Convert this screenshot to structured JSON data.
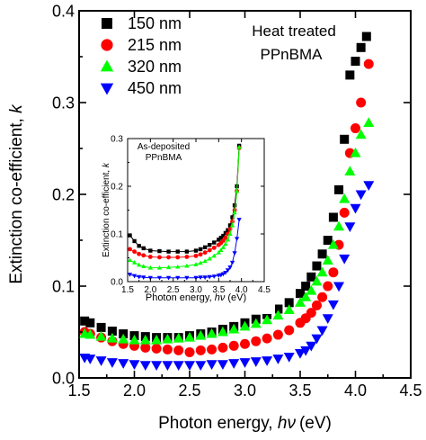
{
  "chart_data": [
    {
      "type": "scatter",
      "title": "",
      "xlabel_text": "Photon energy, ",
      "xlabel_symbol": "hν",
      "xlabel_unit": "(eV)",
      "ylabel_text": "Extinction co-efficient, ",
      "ylabel_symbol": "k",
      "xlim": [
        1.5,
        4.5
      ],
      "ylim": [
        0.0,
        0.4
      ],
      "xticks": [
        "1.5",
        "2.0",
        "2.5",
        "3.0",
        "3.5",
        "4.0",
        "4.5"
      ],
      "yticks": [
        "0.0",
        "0.1",
        "0.2",
        "0.3",
        "0.4"
      ],
      "annotation": [
        "Heat treated",
        "PPnBMA"
      ],
      "legend_position": "top-left",
      "series": [
        {
          "name": "150 nm",
          "marker": "square",
          "color": "#000000",
          "x": [
            1.55,
            1.6,
            1.7,
            1.8,
            1.9,
            2.0,
            2.1,
            2.2,
            2.3,
            2.4,
            2.5,
            2.6,
            2.7,
            2.8,
            2.9,
            3.0,
            3.1,
            3.2,
            3.3,
            3.4,
            3.5,
            3.55,
            3.6,
            3.65,
            3.7,
            3.75,
            3.8,
            3.85,
            3.9,
            3.95,
            4.0,
            4.05,
            4.1
          ],
          "y": [
            0.062,
            0.06,
            0.055,
            0.051,
            0.048,
            0.046,
            0.045,
            0.044,
            0.044,
            0.044,
            0.046,
            0.048,
            0.05,
            0.053,
            0.056,
            0.06,
            0.064,
            0.069,
            0.075,
            0.082,
            0.092,
            0.1,
            0.11,
            0.122,
            0.135,
            0.15,
            0.175,
            0.205,
            0.26,
            0.33,
            0.345,
            0.36,
            0.372
          ]
        },
        {
          "name": "215 nm",
          "marker": "circle",
          "color": "#ff0000",
          "x": [
            1.55,
            1.6,
            1.7,
            1.8,
            1.9,
            2.0,
            2.1,
            2.2,
            2.3,
            2.4,
            2.5,
            2.6,
            2.7,
            2.8,
            2.9,
            3.0,
            3.1,
            3.2,
            3.3,
            3.4,
            3.5,
            3.55,
            3.6,
            3.65,
            3.7,
            3.75,
            3.8,
            3.85,
            3.9,
            3.95,
            4.0,
            4.05,
            4.12
          ],
          "y": [
            0.05,
            0.048,
            0.044,
            0.04,
            0.037,
            0.035,
            0.033,
            0.032,
            0.031,
            0.03,
            0.028,
            0.03,
            0.031,
            0.033,
            0.035,
            0.037,
            0.04,
            0.043,
            0.047,
            0.052,
            0.06,
            0.065,
            0.071,
            0.079,
            0.088,
            0.1,
            0.115,
            0.145,
            0.18,
            0.245,
            0.272,
            0.3,
            0.342
          ]
        },
        {
          "name": "320 nm",
          "marker": "triangle-up",
          "color": "#00ff00",
          "x": [
            1.55,
            1.6,
            1.7,
            1.8,
            1.9,
            2.0,
            2.1,
            2.2,
            2.3,
            2.4,
            2.5,
            2.6,
            2.7,
            2.8,
            2.9,
            3.0,
            3.1,
            3.2,
            3.3,
            3.4,
            3.5,
            3.55,
            3.6,
            3.65,
            3.7,
            3.75,
            3.8,
            3.85,
            3.9,
            3.95,
            4.0,
            4.05,
            4.12
          ],
          "y": [
            0.048,
            0.047,
            0.045,
            0.043,
            0.042,
            0.041,
            0.041,
            0.041,
            0.042,
            0.043,
            0.044,
            0.046,
            0.048,
            0.05,
            0.053,
            0.056,
            0.059,
            0.063,
            0.068,
            0.074,
            0.082,
            0.088,
            0.095,
            0.105,
            0.115,
            0.128,
            0.145,
            0.165,
            0.195,
            0.225,
            0.245,
            0.265,
            0.278
          ]
        },
        {
          "name": "450 nm",
          "marker": "triangle-down",
          "color": "#0000ff",
          "x": [
            1.55,
            1.6,
            1.7,
            1.8,
            1.9,
            2.0,
            2.1,
            2.2,
            2.3,
            2.4,
            2.5,
            2.6,
            2.7,
            2.8,
            2.9,
            3.0,
            3.1,
            3.2,
            3.3,
            3.4,
            3.5,
            3.55,
            3.6,
            3.65,
            3.7,
            3.75,
            3.8,
            3.85,
            3.9,
            3.95,
            4.0,
            4.05,
            4.12
          ],
          "y": [
            0.022,
            0.021,
            0.019,
            0.017,
            0.016,
            0.015,
            0.014,
            0.014,
            0.014,
            0.014,
            0.014,
            0.014,
            0.015,
            0.015,
            0.016,
            0.017,
            0.018,
            0.019,
            0.021,
            0.023,
            0.027,
            0.03,
            0.035,
            0.043,
            0.052,
            0.065,
            0.08,
            0.1,
            0.13,
            0.165,
            0.185,
            0.2,
            0.21
          ]
        }
      ]
    },
    {
      "type": "line",
      "title": "",
      "annotation": [
        "As-deposited",
        "PPnBMA"
      ],
      "xlabel_text": "Photon energy, ",
      "xlabel_symbol": "hν",
      "xlabel_unit": "(eV)",
      "ylabel_text": "Extinction co-efficient, ",
      "ylabel_symbol": "k",
      "xlim": [
        1.5,
        4.5
      ],
      "ylim": [
        0.0,
        0.3
      ],
      "xticks": [
        "1.5",
        "2.0",
        "2.5",
        "3.0",
        "3.5",
        "4.0",
        "4.5"
      ],
      "yticks": [
        "0.0",
        "0.1",
        "0.2",
        "0.3"
      ],
      "series": [
        {
          "color": "#000000",
          "marker": "square",
          "x": [
            1.55,
            1.65,
            1.75,
            1.85,
            2.0,
            2.2,
            2.4,
            2.6,
            2.8,
            3.0,
            3.1,
            3.2,
            3.3,
            3.4,
            3.5,
            3.55,
            3.6,
            3.65,
            3.7,
            3.75,
            3.8,
            3.85,
            3.9,
            3.95
          ],
          "y": [
            0.097,
            0.085,
            0.075,
            0.07,
            0.065,
            0.064,
            0.063,
            0.063,
            0.063,
            0.065,
            0.068,
            0.072,
            0.077,
            0.082,
            0.088,
            0.092,
            0.096,
            0.102,
            0.108,
            0.118,
            0.135,
            0.16,
            0.2,
            0.285
          ]
        },
        {
          "color": "#ff0000",
          "marker": "circle",
          "x": [
            1.55,
            1.65,
            1.75,
            1.85,
            2.0,
            2.2,
            2.4,
            2.6,
            2.8,
            3.0,
            3.1,
            3.2,
            3.3,
            3.4,
            3.5,
            3.55,
            3.6,
            3.65,
            3.7,
            3.75,
            3.8,
            3.85,
            3.9,
            3.95
          ],
          "y": [
            0.068,
            0.063,
            0.058,
            0.055,
            0.052,
            0.051,
            0.051,
            0.051,
            0.052,
            0.054,
            0.057,
            0.061,
            0.066,
            0.071,
            0.077,
            0.081,
            0.086,
            0.092,
            0.1,
            0.11,
            0.126,
            0.15,
            0.19,
            0.28
          ]
        },
        {
          "color": "#00ff00",
          "marker": "triangle-up",
          "x": [
            1.55,
            1.65,
            1.75,
            1.85,
            2.0,
            2.2,
            2.4,
            2.6,
            2.8,
            3.0,
            3.1,
            3.2,
            3.3,
            3.4,
            3.5,
            3.55,
            3.6,
            3.65,
            3.7,
            3.75,
            3.8,
            3.85,
            3.9,
            3.95
          ],
          "y": [
            0.045,
            0.04,
            0.035,
            0.032,
            0.029,
            0.029,
            0.03,
            0.031,
            0.033,
            0.036,
            0.039,
            0.043,
            0.048,
            0.054,
            0.061,
            0.066,
            0.072,
            0.079,
            0.088,
            0.1,
            0.118,
            0.145,
            0.19,
            0.282
          ]
        },
        {
          "color": "#0000ff",
          "marker": "triangle-down",
          "x": [
            1.55,
            1.65,
            1.75,
            1.85,
            2.0,
            2.2,
            2.4,
            2.6,
            2.8,
            3.0,
            3.1,
            3.2,
            3.3,
            3.4,
            3.5,
            3.55,
            3.6,
            3.65,
            3.7,
            3.75,
            3.8,
            3.85,
            3.9,
            3.95
          ],
          "y": [
            0.015,
            0.012,
            0.01,
            0.009,
            0.008,
            0.008,
            0.008,
            0.008,
            0.008,
            0.008,
            0.009,
            0.009,
            0.01,
            0.011,
            0.013,
            0.014,
            0.016,
            0.019,
            0.024,
            0.03,
            0.04,
            0.06,
            0.09,
            0.13
          ]
        }
      ]
    }
  ]
}
